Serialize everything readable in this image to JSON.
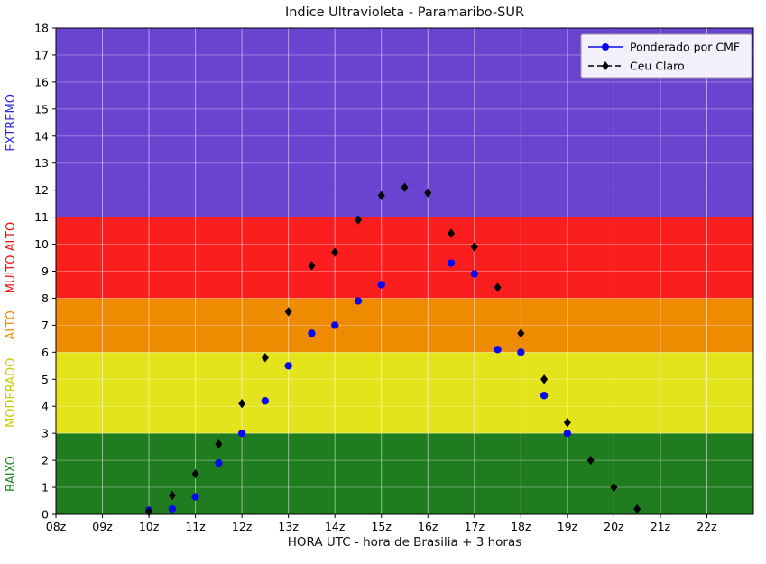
{
  "chart_data": {
    "type": "scatter",
    "title": "Indice Ultravioleta - Paramaribo-SUR",
    "xlabel": "HORA UTC - hora de Brasilia + 3 horas",
    "ylabel": "",
    "xlim": [
      8,
      23
    ],
    "ylim": [
      0,
      18
    ],
    "grid": true,
    "x_ticks": [
      {
        "value": 8,
        "label": "08z"
      },
      {
        "value": 9,
        "label": "09z"
      },
      {
        "value": 10,
        "label": "10z"
      },
      {
        "value": 11,
        "label": "11z"
      },
      {
        "value": 12,
        "label": "12z"
      },
      {
        "value": 13,
        "label": "13z"
      },
      {
        "value": 14,
        "label": "14z"
      },
      {
        "value": 15,
        "label": "15z"
      },
      {
        "value": 16,
        "label": "16z"
      },
      {
        "value": 17,
        "label": "17z"
      },
      {
        "value": 18,
        "label": "18z"
      },
      {
        "value": 19,
        "label": "19z"
      },
      {
        "value": 20,
        "label": "20z"
      },
      {
        "value": 21,
        "label": "21z"
      },
      {
        "value": 22,
        "label": "22z"
      }
    ],
    "y_ticks": [
      0,
      1,
      2,
      3,
      4,
      5,
      6,
      7,
      8,
      9,
      10,
      11,
      12,
      13,
      14,
      15,
      16,
      17,
      18
    ],
    "bands": [
      {
        "label": "BAIXO",
        "min": 0,
        "max": 3,
        "color": "#1f7d1f",
        "label_color": "#1d891d"
      },
      {
        "label": "MODERADO",
        "min": 3,
        "max": 6,
        "color": "#e4e41c",
        "label_color": "#cbcb00"
      },
      {
        "label": "ALTO",
        "min": 6,
        "max": 8,
        "color": "#ee8b00",
        "label_color": "#ee8b00"
      },
      {
        "label": "MUITO ALTO",
        "min": 8,
        "max": 11,
        "color": "#fa1e1e",
        "label_color": "#ee1010"
      },
      {
        "label": "EXTREMO",
        "min": 11,
        "max": 18,
        "color": "#6a43d1",
        "label_color": "#2c2cd8"
      }
    ],
    "series": [
      {
        "name": "Ponderado por CMF",
        "marker": "circle",
        "line": "solid",
        "color": "#0a0af0",
        "points": [
          [
            10.0,
            0.15
          ],
          [
            10.5,
            0.2
          ],
          [
            11.0,
            0.65
          ],
          [
            11.5,
            1.9
          ],
          [
            12.0,
            3.0
          ],
          [
            12.5,
            4.2
          ],
          [
            13.0,
            5.5
          ],
          [
            13.5,
            6.7
          ],
          [
            14.0,
            7.0
          ],
          [
            14.5,
            7.9
          ],
          [
            15.0,
            8.5
          ],
          [
            16.5,
            9.3
          ],
          [
            17.0,
            8.9
          ],
          [
            17.5,
            6.1
          ],
          [
            18.0,
            6.0
          ],
          [
            18.5,
            4.4
          ],
          [
            19.0,
            3.0
          ]
        ]
      },
      {
        "name": "Ceu Claro",
        "marker": "diamond",
        "line": "dashed",
        "color": "#000000",
        "points": [
          [
            10.0,
            0.1
          ],
          [
            10.5,
            0.7
          ],
          [
            11.0,
            1.5
          ],
          [
            11.5,
            2.6
          ],
          [
            12.0,
            4.1
          ],
          [
            12.5,
            5.8
          ],
          [
            13.0,
            7.5
          ],
          [
            13.5,
            9.2
          ],
          [
            14.0,
            9.7
          ],
          [
            14.5,
            10.9
          ],
          [
            15.0,
            11.8
          ],
          [
            15.5,
            12.1
          ],
          [
            16.0,
            11.9
          ],
          [
            16.5,
            10.4
          ],
          [
            17.0,
            9.9
          ],
          [
            17.5,
            8.4
          ],
          [
            18.0,
            6.7
          ],
          [
            18.5,
            5.0
          ],
          [
            19.0,
            3.4
          ],
          [
            19.5,
            2.0
          ],
          [
            20.0,
            1.0
          ],
          [
            20.5,
            0.2
          ]
        ]
      }
    ],
    "legend": {
      "position": "top-right"
    }
  }
}
